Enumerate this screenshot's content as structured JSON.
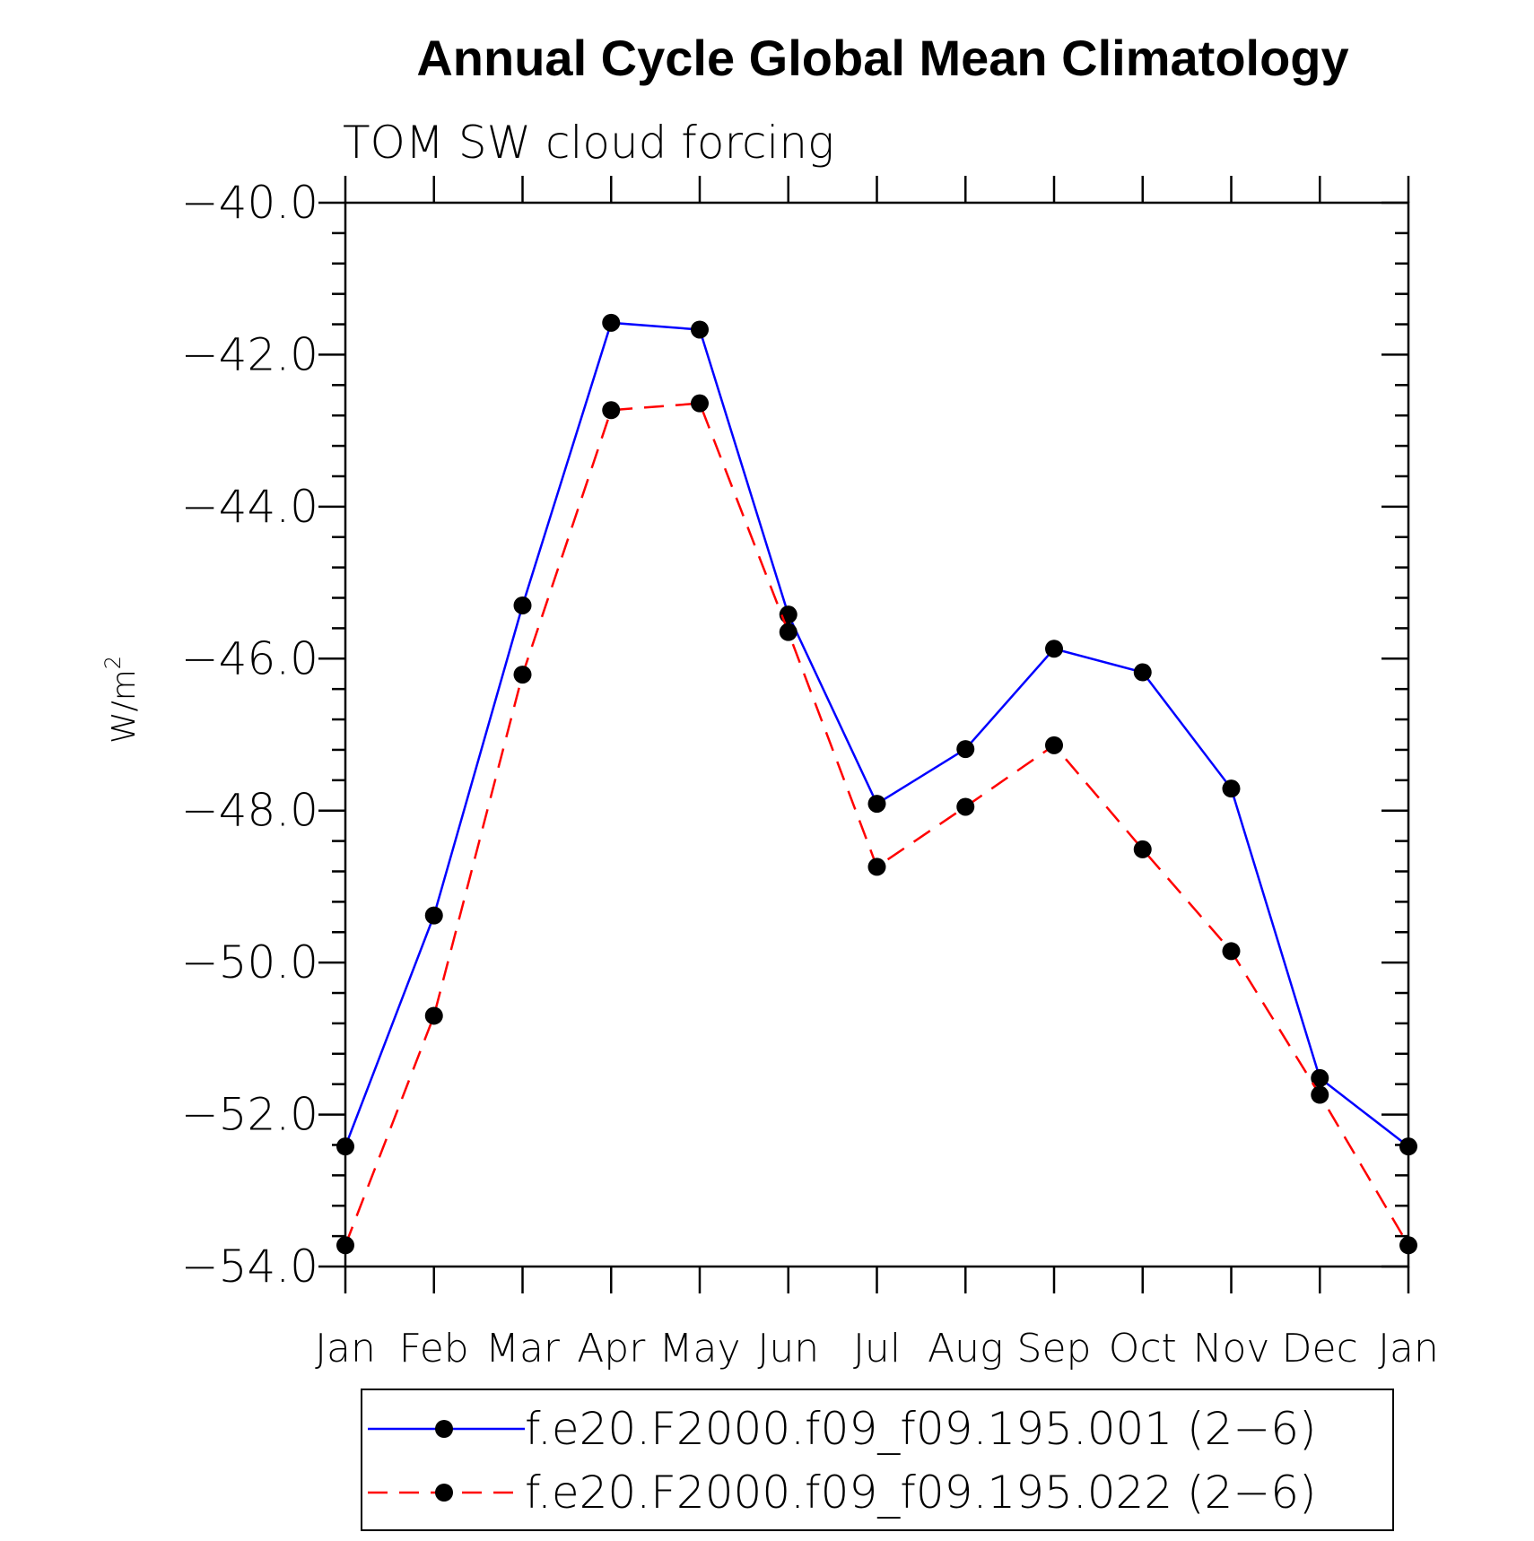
{
  "chart_data": {
    "type": "line",
    "title": "Annual Cycle Global Mean Climatology",
    "subtitle": "TOM SW cloud forcing",
    "ylabel_base": "W/m",
    "ylabel_sup": "2",
    "xlabel": "",
    "categories": [
      "Jan",
      "Feb",
      "Mar",
      "Apr",
      "May",
      "Jun",
      "Jul",
      "Aug",
      "Sep",
      "Oct",
      "Nov",
      "Dec",
      "Jan"
    ],
    "ylim": [
      -54.0,
      -40.0
    ],
    "yticks": [
      -40.0,
      -42.0,
      -44.0,
      -46.0,
      -48.0,
      -50.0,
      -52.0,
      -54.0
    ],
    "ytick_labels": [
      "−40.0",
      "−42.0",
      "−44.0",
      "−46.0",
      "−48.0",
      "−50.0",
      "−52.0",
      "−54.0"
    ],
    "series": [
      {
        "name": "f.e20.F2000.f09_f09.195.001 (2−6)",
        "color": "#0000ff",
        "dash": "solid",
        "marker": "filled-circle",
        "values": [
          -52.42,
          -49.38,
          -45.3,
          -41.58,
          -41.67,
          -45.42,
          -47.91,
          -47.19,
          -45.87,
          -46.18,
          -47.71,
          -51.52,
          -52.42
        ]
      },
      {
        "name": "f.e20.F2000.f09_f09.195.022 (2−6)",
        "color": "#ff0000",
        "dash": "dashed",
        "marker": "filled-circle",
        "values": [
          -53.72,
          -50.7,
          -46.21,
          -42.73,
          -42.64,
          -45.65,
          -48.74,
          -47.95,
          -47.14,
          -48.51,
          -49.85,
          -51.74,
          -53.72
        ]
      }
    ],
    "grid": false,
    "legend_placement": "bottom"
  }
}
